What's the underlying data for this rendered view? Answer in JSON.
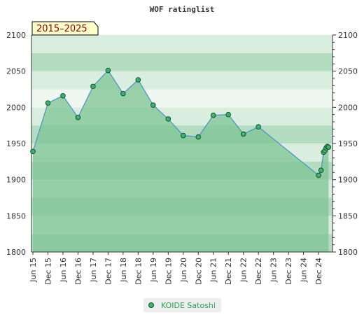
{
  "chart_data": {
    "type": "area",
    "title": "WOF ratinglist",
    "badge": "2015–2025",
    "xlabel": "",
    "ylabel": "",
    "ylim": [
      1800,
      2100
    ],
    "yticks": [
      1800,
      1850,
      1900,
      1950,
      2000,
      2050,
      2100
    ],
    "xtick_labels": [
      "Jun 15",
      "Dec 15",
      "Jun 16",
      "Dec 16",
      "Jun 17",
      "Dec 17",
      "Jun 18",
      "Dec 18",
      "Jun 19",
      "Dec 19",
      "Jun 20",
      "Dec 20",
      "Jun 21",
      "Dec 21",
      "Jun 22",
      "Dec 22",
      "Jun 23",
      "Dec 23",
      "Jun 24",
      "Dec 24"
    ],
    "x_range_months": [
      0,
      119
    ],
    "legend_position": "bottom",
    "grid": true,
    "colors": {
      "area_fill": "#7dc494",
      "line": "#4a90c8",
      "marker": "#3cb371",
      "band_dark": "#b4dcc0",
      "band_light": "#d9eedf",
      "band_lightest": "#eef7f0",
      "badge_bg": "#ffffcc",
      "badge_text": "#8b0000"
    },
    "series": [
      {
        "name": "KOIDE Satoshi",
        "x_months": [
          0,
          6,
          12,
          18,
          24,
          30,
          36,
          42,
          48,
          54,
          60,
          66,
          72,
          78,
          84,
          90,
          114,
          115,
          116,
          116.5,
          117,
          117.5,
          118
        ],
        "values": [
          1939,
          2006,
          2016,
          1986,
          2029,
          2051,
          2019,
          2038,
          2003,
          1984,
          1961,
          1959,
          1989,
          1990,
          1963,
          1973,
          1906,
          1913,
          1938,
          1940,
          1944,
          1946,
          1945
        ]
      }
    ]
  }
}
